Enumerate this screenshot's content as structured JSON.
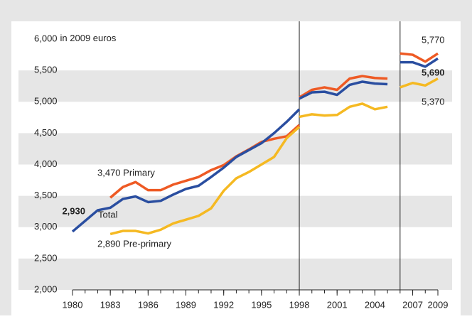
{
  "chart_data": {
    "type": "line",
    "y_label": "in 2009 euros",
    "x": [
      1980,
      1981,
      1982,
      1983,
      1984,
      1985,
      1986,
      1987,
      1988,
      1989,
      1990,
      1991,
      1992,
      1993,
      1994,
      1995,
      1996,
      1997,
      1998,
      null,
      1998,
      1999,
      2000,
      2001,
      2002,
      2003,
      2004,
      2005,
      null,
      2006,
      2007,
      2008,
      2009
    ],
    "series": [
      {
        "name": "Primary",
        "color": "#ee5a24",
        "values": [
          null,
          null,
          null,
          3470,
          3640,
          3720,
          3590,
          3590,
          3680,
          3740,
          3800,
          3910,
          3990,
          4130,
          4240,
          4360,
          4410,
          4450,
          4630,
          null,
          5070,
          5190,
          5230,
          5190,
          5370,
          5410,
          5380,
          5370,
          null,
          5770,
          5750,
          5640,
          5770
        ]
      },
      {
        "name": "Pre-primary",
        "color": "#f5b922",
        "values": [
          null,
          null,
          null,
          2890,
          2940,
          2940,
          2900,
          2960,
          3060,
          3120,
          3180,
          3300,
          3580,
          3780,
          3880,
          4000,
          4120,
          4420,
          4600,
          null,
          4760,
          4800,
          4780,
          4790,
          4920,
          4970,
          4880,
          4920,
          null,
          5230,
          5300,
          5260,
          5370
        ]
      },
      {
        "name": "Total",
        "color": "#2a4ea0",
        "values": [
          2930,
          3100,
          3270,
          3310,
          3450,
          3490,
          3400,
          3420,
          3520,
          3610,
          3660,
          3800,
          3950,
          4120,
          4230,
          4340,
          4500,
          4680,
          4880,
          null,
          5050,
          5150,
          5160,
          5110,
          5270,
          5320,
          5290,
          5280,
          null,
          5630,
          5630,
          5560,
          5690
        ]
      }
    ],
    "annotations": [
      "2,930",
      "Total",
      "3,470 Primary",
      "2,890 Pre-primary",
      "5,770",
      "5,690",
      "5,370"
    ],
    "xlim": [
      1980,
      2009
    ],
    "xticks": [
      1980,
      1983,
      1986,
      1989,
      1992,
      1995,
      1998,
      2001,
      2004,
      2007,
      2009
    ],
    "ylim": [
      2000,
      6000
    ],
    "yticks": [
      {
        "value": 2000,
        "label": "2,000"
      },
      {
        "value": 2500,
        "label": "2,500"
      },
      {
        "value": 3000,
        "label": "3,000"
      },
      {
        "value": 3500,
        "label": "3,500"
      },
      {
        "value": 4000,
        "label": "4,000"
      },
      {
        "value": 4500,
        "label": "4,500"
      },
      {
        "value": 5000,
        "label": "5,000"
      },
      {
        "value": 5500,
        "label": "5,500"
      },
      {
        "value": 6000,
        "label": "6,000"
      }
    ],
    "vlines": [
      1998,
      2006
    ],
    "grid": true
  }
}
